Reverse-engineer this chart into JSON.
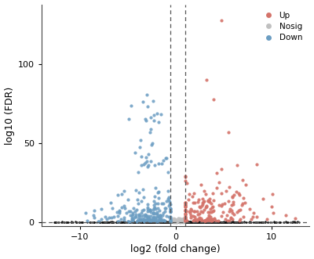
{
  "title": "",
  "xlabel": "log2 (fold change)",
  "ylabel": "log10 (FDR)",
  "xlim": [
    -14,
    14
  ],
  "ylim": [
    -2.5,
    138
  ],
  "vline1": -0.5,
  "vline2": 1.0,
  "hline": 0,
  "up_color": "#D4736A",
  "nosig_color": "#C0C0C0",
  "down_color": "#6B9DC2",
  "black_color": "#111111",
  "yticks": [
    0,
    50,
    100
  ],
  "xticks": [
    -10,
    0,
    10
  ],
  "seed": 123,
  "n_up": 220,
  "n_down": 250,
  "n_nosig": 60,
  "n_black": 800,
  "figsize": [
    4.0,
    3.31
  ],
  "dpi": 100
}
